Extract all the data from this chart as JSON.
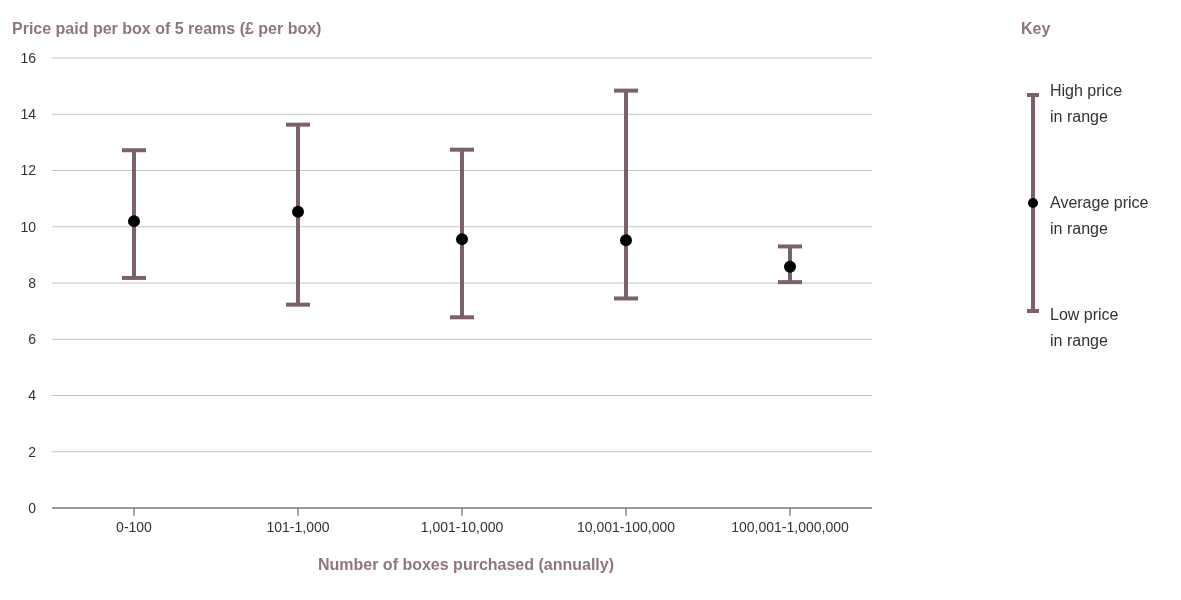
{
  "chart_data": {
    "type": "scatter",
    "xlabel": "Number of boxes purchased (annually)",
    "ylabel": "Price paid per box of 5 reams (£ per box)",
    "legend_title": "Key",
    "categories": [
      "0-100",
      "101-1,000",
      "1,001-10,000",
      "10,001-100,000",
      "100,001-1,000,000"
    ],
    "series": [
      {
        "color": "#000000",
        "values": [
          10.2,
          10.53,
          9.56,
          9.52,
          8.58
        ],
        "errors": [
          [
            8.18,
            12.72
          ],
          [
            7.23,
            13.63
          ],
          [
            6.78,
            12.74
          ],
          [
            7.45,
            14.84
          ],
          [
            8.03,
            9.3
          ]
        ]
      }
    ],
    "ylim": [
      0,
      16
    ],
    "yticks": [
      0,
      2,
      4,
      6,
      8,
      10,
      12,
      14,
      16
    ],
    "grid": "y",
    "marker": "circle",
    "annotations": [
      "High price\nin range",
      "Average price\nin range",
      "Low price\nin range"
    ]
  }
}
